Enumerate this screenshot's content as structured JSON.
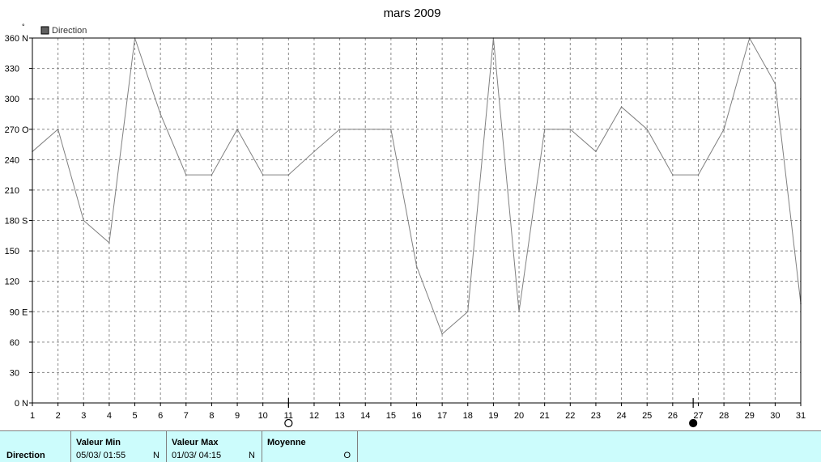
{
  "chart_data": {
    "type": "line",
    "title": "mars 2009",
    "y_unit_mark": "°",
    "legend": {
      "label": "Direction",
      "swatch_color": "#606060",
      "placement": "top-left"
    },
    "ylim": [
      0,
      360
    ],
    "yticks": [
      {
        "value": 0,
        "label": "0",
        "dir": "N"
      },
      {
        "value": 30,
        "label": "30",
        "dir": ""
      },
      {
        "value": 60,
        "label": "60",
        "dir": ""
      },
      {
        "value": 90,
        "label": "90",
        "dir": "E"
      },
      {
        "value": 120,
        "label": "120",
        "dir": ""
      },
      {
        "value": 150,
        "label": "150",
        "dir": ""
      },
      {
        "value": 180,
        "label": "180",
        "dir": "S"
      },
      {
        "value": 210,
        "label": "210",
        "dir": ""
      },
      {
        "value": 240,
        "label": "240",
        "dir": ""
      },
      {
        "value": 270,
        "label": "270",
        "dir": "O"
      },
      {
        "value": 300,
        "label": "300",
        "dir": ""
      },
      {
        "value": 330,
        "label": "330",
        "dir": ""
      },
      {
        "value": 360,
        "label": "360",
        "dir": "N"
      }
    ],
    "xlim": [
      1,
      31
    ],
    "x": [
      1,
      2,
      3,
      4,
      5,
      6,
      7,
      8,
      9,
      10,
      11,
      12,
      13,
      14,
      15,
      16,
      17,
      18,
      19,
      20,
      21,
      22,
      23,
      24,
      25,
      26,
      27,
      28,
      29,
      30,
      31
    ],
    "series": [
      {
        "name": "Direction",
        "color": "#808080",
        "values": [
          248,
          270,
          180,
          158,
          360,
          285,
          225,
          225,
          270,
          225,
          225,
          248,
          270,
          270,
          270,
          135,
          68,
          90,
          360,
          90,
          270,
          270,
          248,
          292,
          270,
          225,
          225,
          270,
          360,
          315,
          98
        ]
      }
    ],
    "moon_markers": [
      {
        "x": 11,
        "phase": "full"
      },
      {
        "x": 26.8,
        "phase": "new"
      }
    ],
    "grid": true
  },
  "table": {
    "row_label": "Direction",
    "min": {
      "header": "Valeur Min",
      "date": "05/03/  01:55",
      "dir": "N"
    },
    "max": {
      "header": "Valeur Max",
      "date": "01/03/  04:15",
      "dir": "N"
    },
    "avg": {
      "header": "Moyenne",
      "value": "O"
    }
  }
}
